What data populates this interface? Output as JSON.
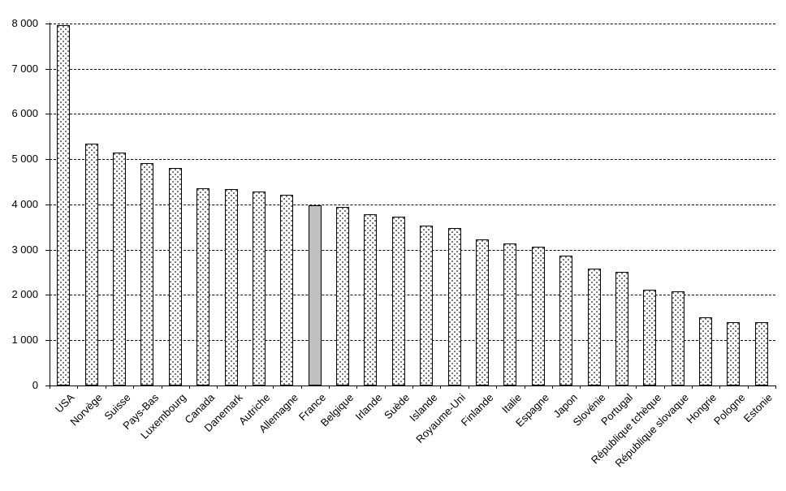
{
  "chart_data": {
    "type": "bar",
    "title": "",
    "xlabel": "",
    "ylabel": "",
    "categories": [
      "USA",
      "Norvège",
      "Suisse",
      "Pays-Bas",
      "Luxembourg",
      "Canada",
      "Danemark",
      "Autriche",
      "Allemagne",
      "France",
      "Belgique",
      "Irlande",
      "Suède",
      "Islande",
      "Royaume-Uni",
      "Finlande",
      "Italie",
      "Espagne",
      "Japon",
      "Slovénie",
      "Portugal",
      "République tchèque",
      "République slovaque",
      "Hongrie",
      "Pologne",
      "Estonie"
    ],
    "values": [
      7960,
      5352,
      5144,
      4914,
      4808,
      4363,
      4348,
      4289,
      4218,
      3978,
      3946,
      3781,
      3722,
      3538,
      3487,
      3226,
      3137,
      3067,
      2878,
      2579,
      2508,
      2108,
      2084,
      1511,
      1394,
      1393
    ],
    "highlight_index": 9,
    "highlighted_category": "France",
    "ylim": [
      0,
      8000
    ],
    "ytick_step": 1000,
    "ytick_labels": [
      "0",
      "1 000",
      "2 000",
      "3 000",
      "4 000",
      "5 000",
      "6 000",
      "7 000",
      "8 000"
    ],
    "grid": "horizontal-dashed",
    "legend": "none",
    "colors": {
      "background": "#ffffff",
      "axis": "#000000",
      "gridline": "#000000",
      "bar_border": "#000000",
      "bar_fill": "#ffffff",
      "bar_pattern_dots": "#000000",
      "highlight_fill": "#c0c0c0",
      "text": "#000000"
    }
  }
}
